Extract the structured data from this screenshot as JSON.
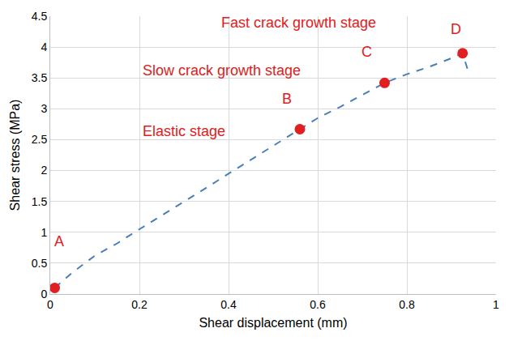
{
  "chart_data": {
    "type": "line",
    "x_label": "Shear displacement (mm)",
    "y_label": "Shear stress (MPa)",
    "series": [
      {
        "type": "line",
        "color": "#4a7ebb",
        "line_style": "dashed",
        "x": [
          0.01,
          0.05,
          0.1,
          0.15,
          0.2,
          0.25,
          0.3,
          0.35,
          0.4,
          0.45,
          0.5,
          0.56,
          0.6,
          0.65,
          0.7,
          0.75,
          0.8,
          0.85,
          0.9,
          0.925,
          0.94
        ],
        "values": [
          0.1,
          0.35,
          0.62,
          0.82,
          1.05,
          1.27,
          1.5,
          1.72,
          1.95,
          2.17,
          2.4,
          2.67,
          2.85,
          3.03,
          3.22,
          3.42,
          3.56,
          3.68,
          3.82,
          3.9,
          3.55
        ]
      },
      {
        "type": "scatter",
        "color": "#e02020",
        "marker": "circle",
        "x": [
          0.01,
          0.56,
          0.75,
          0.925
        ],
        "values": [
          0.1,
          2.67,
          3.42,
          3.9
        ]
      }
    ],
    "annotations": [
      {
        "text": "Fast crack growth stage",
        "x": 0.557,
        "y": 4.4
      },
      {
        "text": "Slow crack growth stage",
        "x": 0.385,
        "y": 3.62
      },
      {
        "text": "Elastic stage",
        "x": 0.3,
        "y": 2.64
      },
      {
        "text": "A",
        "x": 0.02,
        "y": 0.85
      },
      {
        "text": "B",
        "x": 0.53,
        "y": 3.16
      },
      {
        "text": "C",
        "x": 0.71,
        "y": 3.92
      },
      {
        "text": "D",
        "x": 0.91,
        "y": 4.29
      }
    ],
    "annotation_color": "#e02020",
    "xlim": [
      0,
      1
    ],
    "xticks": [
      0,
      0.2,
      0.4,
      0.6,
      0.8,
      1
    ],
    "ylim": [
      0,
      4.5
    ],
    "yticks": [
      0,
      0.5,
      1,
      1.5,
      2,
      2.5,
      3,
      3.5,
      4,
      4.5
    ],
    "grid": true
  }
}
